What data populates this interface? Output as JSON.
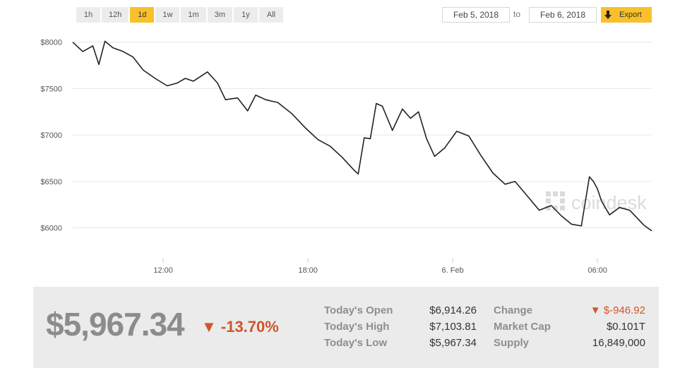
{
  "ranges": [
    {
      "label": "1h",
      "active": false
    },
    {
      "label": "12h",
      "active": false
    },
    {
      "label": "1d",
      "active": true
    },
    {
      "label": "1w",
      "active": false
    },
    {
      "label": "1m",
      "active": false
    },
    {
      "label": "3m",
      "active": false
    },
    {
      "label": "1y",
      "active": false
    },
    {
      "label": "All",
      "active": false
    }
  ],
  "date_range": {
    "from": "Feb 5, 2018",
    "separator": "to",
    "to": "Feb 6, 2018"
  },
  "export_label": "Export",
  "watermark": "coindesk",
  "colors": {
    "accent": "#f8c02c",
    "negative": "#d0552a",
    "line": "#222222",
    "grid": "#e6e6e6"
  },
  "chart_data": {
    "type": "line",
    "title": "",
    "xlabel": "",
    "ylabel": "",
    "ylim": [
      5700,
      8150
    ],
    "xlim": [
      "2018-02-05 08:15",
      "2018-02-06 08:15"
    ],
    "y_ticks": [
      {
        "value": 8000,
        "label": "$8000"
      },
      {
        "value": 7500,
        "label": "$7500"
      },
      {
        "value": 7000,
        "label": "$7000"
      },
      {
        "value": 6500,
        "label": "$6500"
      },
      {
        "value": 6000,
        "label": "$6000"
      }
    ],
    "x_ticks": [
      {
        "value": "2018-02-05 12:00",
        "label": "12:00"
      },
      {
        "value": "2018-02-05 18:00",
        "label": "18:00"
      },
      {
        "value": "2018-02-06 00:00",
        "label": "6. Feb"
      },
      {
        "value": "2018-02-06 06:00",
        "label": "06:00"
      }
    ],
    "grid": true,
    "legend": "none",
    "series": [
      {
        "x": [
          "2018-02-05 08:15",
          "2018-02-05 08:40",
          "2018-02-05 09:05",
          "2018-02-05 09:20",
          "2018-02-05 09:35",
          "2018-02-05 09:55",
          "2018-02-05 10:20",
          "2018-02-05 10:45",
          "2018-02-05 11:10",
          "2018-02-05 11:40",
          "2018-02-05 12:10",
          "2018-02-05 12:35",
          "2018-02-05 12:55",
          "2018-02-05 13:15",
          "2018-02-05 13:50",
          "2018-02-05 14:15",
          "2018-02-05 14:35",
          "2018-02-05 15:05",
          "2018-02-05 15:30",
          "2018-02-05 15:50",
          "2018-02-05 16:15",
          "2018-02-05 16:45",
          "2018-02-05 17:20",
          "2018-02-05 17:55",
          "2018-02-05 18:25",
          "2018-02-05 18:55",
          "2018-02-05 19:25",
          "2018-02-05 19:55",
          "2018-02-05 20:05",
          "2018-02-05 20:20",
          "2018-02-05 20:35",
          "2018-02-05 20:50",
          "2018-02-05 21:05",
          "2018-02-05 21:30",
          "2018-02-05 21:55",
          "2018-02-05 22:15",
          "2018-02-05 22:35",
          "2018-02-05 22:55",
          "2018-02-05 23:15",
          "2018-02-05 23:40",
          "2018-02-06 00:10",
          "2018-02-06 00:40",
          "2018-02-06 01:10",
          "2018-02-06 01:40",
          "2018-02-06 02:10",
          "2018-02-06 02:35",
          "2018-02-06 03:10",
          "2018-02-06 03:35",
          "2018-02-06 04:05",
          "2018-02-06 04:30",
          "2018-02-06 04:55",
          "2018-02-06 05:20",
          "2018-02-06 05:40",
          "2018-02-06 05:50",
          "2018-02-06 06:00",
          "2018-02-06 06:10",
          "2018-02-06 06:30",
          "2018-02-06 06:55",
          "2018-02-06 07:20",
          "2018-02-06 07:40",
          "2018-02-06 07:55",
          "2018-02-06 08:15"
        ],
        "y": [
          8000,
          7900,
          7960,
          7760,
          8010,
          7940,
          7900,
          7840,
          7700,
          7610,
          7530,
          7560,
          7610,
          7580,
          7680,
          7560,
          7380,
          7400,
          7260,
          7430,
          7380,
          7350,
          7230,
          7070,
          6950,
          6880,
          6760,
          6620,
          6580,
          6970,
          6960,
          7340,
          7310,
          7050,
          7280,
          7180,
          7250,
          6960,
          6770,
          6860,
          7040,
          6990,
          6780,
          6590,
          6470,
          6500,
          6320,
          6190,
          6240,
          6130,
          6040,
          6020,
          6550,
          6500,
          6420,
          6290,
          6140,
          6220,
          6190,
          6100,
          6030,
          5967
        ]
      }
    ]
  },
  "summary": {
    "price": "$5,967.34",
    "change_pct": "▼ -13.70%",
    "stats": [
      {
        "label": "Today's Open",
        "value": "$6,914.26"
      },
      {
        "label": "Today's High",
        "value": "$7,103.81"
      },
      {
        "label": "Today's Low",
        "value": "$5,967.34"
      },
      {
        "label": "Change",
        "value": "▼ $-946.92"
      },
      {
        "label": "Market Cap",
        "value": "$0.101T"
      },
      {
        "label": "Supply",
        "value": "16,849,000"
      }
    ]
  }
}
